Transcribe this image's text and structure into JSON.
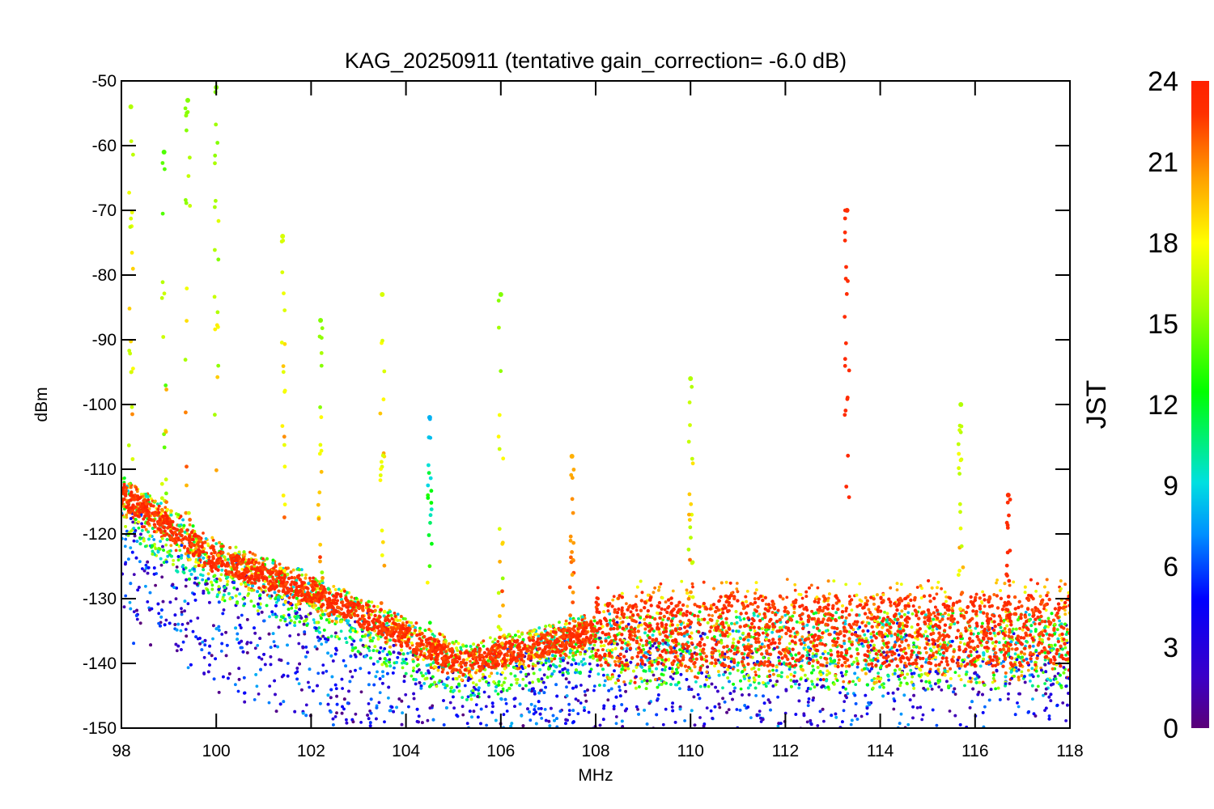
{
  "chart_data": {
    "type": "scatter",
    "title": "KAG_20250911 (tentative gain_correction= -6.0 dB)",
    "xlabel": "MHz",
    "ylabel": "dBm",
    "xlim": [
      98,
      118
    ],
    "ylim": [
      -150,
      -50
    ],
    "x_ticks": [
      98,
      100,
      102,
      104,
      106,
      108,
      110,
      112,
      114,
      116,
      118
    ],
    "y_ticks": [
      -50,
      -60,
      -70,
      -80,
      -90,
      -100,
      -110,
      -120,
      -130,
      -140,
      -150
    ],
    "colorbar": {
      "label": "JST",
      "range": [
        0,
        24
      ],
      "ticks": [
        24,
        21,
        18,
        15,
        12,
        9,
        6,
        3,
        0
      ],
      "colors": [
        "#5a0078",
        "#3a00c8",
        "#0000ff",
        "#0090ff",
        "#00e0e0",
        "#00ff00",
        "#a0ff00",
        "#ffff00",
        "#ffa000",
        "#ff3000",
        "#ff2000"
      ]
    },
    "noise_floor": {
      "description_values_dBm": [
        [
          98,
          -114
        ],
        [
          100,
          -124
        ],
        [
          102,
          -129
        ],
        [
          104,
          -136
        ],
        [
          105.2,
          -140
        ],
        [
          107,
          -137
        ],
        [
          108,
          -135
        ],
        [
          118,
          -135
        ]
      ]
    },
    "signals": [
      {
        "freq_mhz": 98.2,
        "peak_dbm": -54,
        "color_jst": 16
      },
      {
        "freq_mhz": 98.9,
        "peak_dbm": -61,
        "color_jst": 14
      },
      {
        "freq_mhz": 99.4,
        "peak_dbm": -53,
        "color_jst": 15
      },
      {
        "freq_mhz": 100.0,
        "peak_dbm": -51,
        "color_jst": 15
      },
      {
        "freq_mhz": 101.4,
        "peak_dbm": -74,
        "color_jst": 17
      },
      {
        "freq_mhz": 102.2,
        "peak_dbm": -87,
        "color_jst": 15
      },
      {
        "freq_mhz": 103.5,
        "peak_dbm": -83,
        "color_jst": 17
      },
      {
        "freq_mhz": 104.5,
        "peak_dbm": -102,
        "color_jst": 8
      },
      {
        "freq_mhz": 106.0,
        "peak_dbm": -83,
        "color_jst": 15
      },
      {
        "freq_mhz": 107.5,
        "peak_dbm": -108,
        "color_jst": 20
      },
      {
        "freq_mhz": 110.0,
        "peak_dbm": -96,
        "color_jst": 16
      },
      {
        "freq_mhz": 113.3,
        "peak_dbm": -70,
        "color_jst": 23
      },
      {
        "freq_mhz": 115.7,
        "peak_dbm": -100,
        "color_jst": 16
      },
      {
        "freq_mhz": 116.7,
        "peak_dbm": -114,
        "color_jst": 23
      }
    ]
  }
}
